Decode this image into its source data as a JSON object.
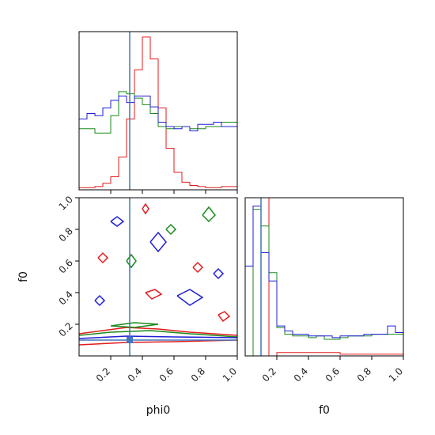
{
  "figure": {
    "type": "corner plot",
    "parameters": [
      "phi0",
      "f0"
    ],
    "truths": {
      "phi0": 0.32,
      "f0": 0.1
    }
  },
  "axis_labels": {
    "phi0_x": "phi0",
    "f0_y": "f0",
    "f0_x": "f0"
  },
  "colors": {
    "red": "#e41a1c",
    "green": "#1a8a1a",
    "blue": "#1f1fd6",
    "truth": "#4477bb"
  },
  "chart_data": [
    {
      "type": "histogram",
      "panel": "phi0 marginal",
      "x": [
        0.0,
        0.05,
        0.1,
        0.15,
        0.2,
        0.25,
        0.3,
        0.35,
        0.4,
        0.45,
        0.5,
        0.55,
        0.6,
        0.65,
        0.7,
        0.75,
        0.8,
        0.85,
        0.9,
        0.95
      ],
      "bin_width": 0.05,
      "xlim": [
        0,
        1
      ],
      "series": [
        {
          "color": "red",
          "values": [
            0.02,
            0.02,
            0.03,
            0.06,
            0.12,
            0.3,
            0.65,
            1.1,
            1.4,
            1.2,
            0.75,
            0.38,
            0.16,
            0.07,
            0.04,
            0.03,
            0.02,
            0.02,
            0.03,
            0.03
          ]
        },
        {
          "color": "green",
          "values": [
            0.56,
            0.56,
            0.52,
            0.52,
            0.68,
            0.9,
            0.88,
            0.84,
            0.78,
            0.7,
            0.58,
            0.56,
            0.58,
            0.58,
            0.56,
            0.56,
            0.58,
            0.58,
            0.62,
            0.62
          ]
        },
        {
          "color": "blue",
          "values": [
            0.65,
            0.7,
            0.68,
            0.75,
            0.82,
            0.86,
            0.8,
            0.86,
            0.86,
            0.76,
            0.62,
            0.58,
            0.56,
            0.58,
            0.54,
            0.6,
            0.6,
            0.62,
            0.58,
            0.58
          ]
        }
      ],
      "truth": 0.32,
      "x_ticks": []
    },
    {
      "type": "contour",
      "panel": "f0 vs phi0",
      "xlabel": "phi0",
      "ylabel": "f0",
      "xlim": [
        0,
        1
      ],
      "ylim": [
        0,
        1
      ],
      "x_ticks": [
        "0.2",
        "0.4",
        "0.6",
        "0.8",
        "1.0"
      ],
      "y_ticks": [
        "0.2",
        "0.4",
        "0.6",
        "0.8",
        "1.0"
      ],
      "truth": {
        "x": 0.32,
        "y": 0.1
      },
      "series": [
        {
          "color": "red",
          "contours": [
            [
              [
                0.0,
                0.14
              ],
              [
                0.15,
                0.16
              ],
              [
                0.3,
                0.18
              ],
              [
                0.5,
                0.17
              ],
              [
                0.7,
                0.15
              ],
              [
                0.85,
                0.14
              ],
              [
                1.0,
                0.13
              ]
            ],
            [
              [
                0.0,
                0.07
              ],
              [
                0.3,
                0.085
              ],
              [
                0.6,
                0.09
              ],
              [
                1.0,
                0.1
              ]
            ],
            [
              [
                0.12,
                0.62
              ],
              [
                0.15,
                0.65
              ],
              [
                0.18,
                0.62
              ],
              [
                0.15,
                0.59
              ],
              [
                0.12,
                0.62
              ]
            ],
            [
              [
                0.42,
                0.4
              ],
              [
                0.48,
                0.42
              ],
              [
                0.52,
                0.39
              ],
              [
                0.46,
                0.36
              ],
              [
                0.42,
                0.4
              ]
            ],
            [
              [
                0.72,
                0.56
              ],
              [
                0.75,
                0.59
              ],
              [
                0.78,
                0.56
              ],
              [
                0.75,
                0.53
              ],
              [
                0.72,
                0.56
              ]
            ],
            [
              [
                0.4,
                0.93
              ],
              [
                0.42,
                0.96
              ],
              [
                0.44,
                0.93
              ],
              [
                0.42,
                0.9
              ],
              [
                0.4,
                0.93
              ]
            ],
            [
              [
                0.88,
                0.26
              ],
              [
                0.92,
                0.28
              ],
              [
                0.95,
                0.25
              ],
              [
                0.91,
                0.22
              ],
              [
                0.88,
                0.26
              ]
            ]
          ]
        },
        {
          "color": "green",
          "contours": [
            [
              [
                0.0,
                0.13
              ],
              [
                0.2,
                0.15
              ],
              [
                0.45,
                0.16
              ],
              [
                0.7,
                0.14
              ],
              [
                1.0,
                0.12
              ]
            ],
            [
              [
                0.2,
                0.19
              ],
              [
                0.35,
                0.21
              ],
              [
                0.5,
                0.2
              ],
              [
                0.35,
                0.18
              ],
              [
                0.2,
                0.19
              ]
            ],
            [
              [
                0.3,
                0.6
              ],
              [
                0.33,
                0.64
              ],
              [
                0.36,
                0.6
              ],
              [
                0.33,
                0.56
              ],
              [
                0.3,
                0.6
              ]
            ],
            [
              [
                0.78,
                0.89
              ],
              [
                0.82,
                0.94
              ],
              [
                0.86,
                0.89
              ],
              [
                0.82,
                0.85
              ],
              [
                0.78,
                0.89
              ]
            ],
            [
              [
                0.55,
                0.8
              ],
              [
                0.58,
                0.83
              ],
              [
                0.61,
                0.8
              ],
              [
                0.58,
                0.77
              ],
              [
                0.55,
                0.8
              ]
            ]
          ]
        },
        {
          "color": "blue",
          "contours": [
            [
              [
                0.0,
                0.11
              ],
              [
                0.3,
                0.125
              ],
              [
                0.6,
                0.12
              ],
              [
                1.0,
                0.115
              ]
            ],
            [
              [
                0.45,
                0.72
              ],
              [
                0.5,
                0.78
              ],
              [
                0.55,
                0.72
              ],
              [
                0.5,
                0.66
              ],
              [
                0.45,
                0.72
              ]
            ],
            [
              [
                0.62,
                0.38
              ],
              [
                0.7,
                0.42
              ],
              [
                0.78,
                0.37
              ],
              [
                0.7,
                0.32
              ],
              [
                0.62,
                0.38
              ]
            ],
            [
              [
                0.2,
                0.85
              ],
              [
                0.24,
                0.88
              ],
              [
                0.28,
                0.85
              ],
              [
                0.24,
                0.82
              ],
              [
                0.2,
                0.85
              ]
            ],
            [
              [
                0.85,
                0.52
              ],
              [
                0.88,
                0.55
              ],
              [
                0.91,
                0.52
              ],
              [
                0.88,
                0.49
              ],
              [
                0.85,
                0.52
              ]
            ],
            [
              [
                0.1,
                0.35
              ],
              [
                0.13,
                0.38
              ],
              [
                0.16,
                0.35
              ],
              [
                0.13,
                0.32
              ],
              [
                0.1,
                0.35
              ]
            ]
          ]
        }
      ]
    },
    {
      "type": "histogram",
      "panel": "f0 marginal",
      "xlabel": "f0",
      "x": [
        0.0,
        0.05,
        0.1,
        0.15,
        0.2,
        0.25,
        0.3,
        0.35,
        0.4,
        0.45,
        0.5,
        0.55,
        0.6,
        0.65,
        0.7,
        0.75,
        0.8,
        0.85,
        0.9,
        0.95
      ],
      "bin_width": 0.05,
      "xlim": [
        0,
        1
      ],
      "x_ticks": [
        "0.2",
        "0.4",
        "0.6",
        "0.8",
        "1.0"
      ],
      "series": [
        {
          "color": "red",
          "values": [
            0.0,
            0.0,
            2.2,
            0.0,
            0.02,
            0.02,
            0.02,
            0.02,
            0.02,
            0.02,
            0.02,
            0.02,
            0.01,
            0.01,
            0.01,
            0.01,
            0.01,
            0.01,
            0.01,
            0.01
          ]
        },
        {
          "color": "green",
          "values": [
            0.0,
            0.88,
            0.78,
            0.5,
            0.17,
            0.13,
            0.12,
            0.12,
            0.11,
            0.12,
            0.1,
            0.1,
            0.11,
            0.12,
            0.12,
            0.12,
            0.13,
            0.13,
            0.13,
            0.13
          ]
        },
        {
          "color": "blue",
          "values": [
            0.54,
            0.9,
            0.62,
            0.45,
            0.18,
            0.15,
            0.13,
            0.13,
            0.12,
            0.12,
            0.12,
            0.11,
            0.12,
            0.12,
            0.12,
            0.13,
            0.13,
            0.13,
            0.18,
            0.14
          ]
        }
      ],
      "truth": 0.1
    }
  ]
}
